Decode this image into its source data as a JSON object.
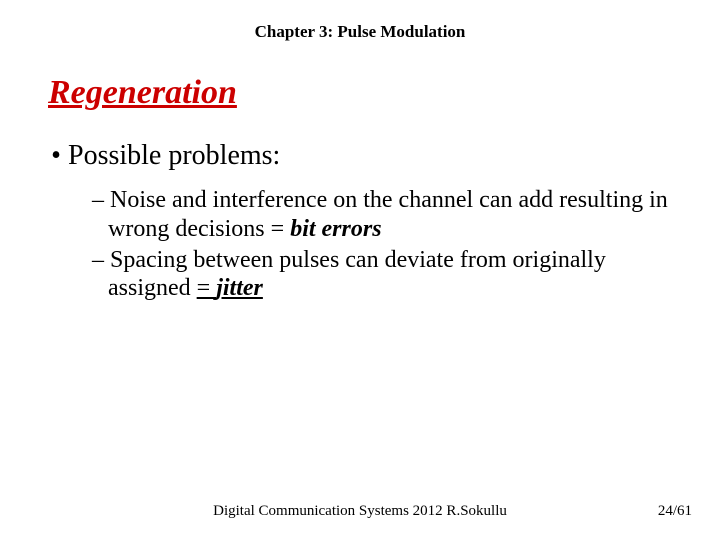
{
  "header": {
    "chapter": "Chapter 3: Pulse Modulation"
  },
  "title": "Regeneration",
  "main_bullet": "Possible problems:",
  "sub_items": {
    "item1_pre": "Noise and interference on the channel can add resulting in wrong decisions = ",
    "item1_term": "bit errors",
    "item2_pre": "Spacing between pulses can deviate from originally assigned ",
    "item2_eq": "= ",
    "item2_term": "jitter"
  },
  "footer": {
    "center": "Digital Communication Systems 2012 R.Sokullu",
    "right": "24/61"
  },
  "colors": {
    "title_color": "#cc0000",
    "text_color": "#000000",
    "background": "#ffffff"
  },
  "fonts": {
    "family": "Times New Roman",
    "header_size_pt": 13,
    "title_size_pt": 26,
    "main_bullet_pt": 21,
    "sub_item_pt": 18,
    "footer_pt": 11
  }
}
